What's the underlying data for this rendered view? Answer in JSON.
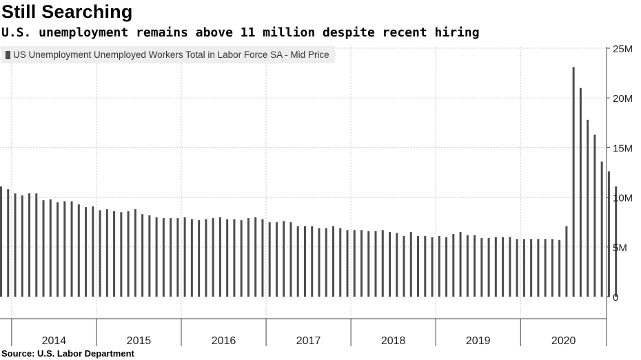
{
  "title": "Still Searching",
  "subtitle": "U.S. unemployment remains above 11 million despite recent hiring",
  "legend_label": "US Unemployment Unemployed Workers Total in Labor Force SA - Mid Price",
  "source": "Source: U.S. Labor Department",
  "colors": {
    "bar": "#4d4d4d",
    "grid": "#cccccc",
    "axis": "#444444",
    "legend_bg": "#eeeeee"
  },
  "chart_data": {
    "type": "bar",
    "title": "Still Searching",
    "subtitle": "U.S. unemployment remains above 11 million despite recent hiring",
    "series_name": "US Unemployment Unemployed Workers Total in Labor Force SA - Mid Price",
    "y_axis_side": "right",
    "ylim": [
      0,
      25
    ],
    "unit": "M",
    "y_ticks": [
      {
        "value": 0,
        "label": "0"
      },
      {
        "value": 5,
        "label": "5M"
      },
      {
        "value": 10,
        "label": "10M"
      },
      {
        "value": 15,
        "label": "15M"
      },
      {
        "value": 20,
        "label": "20M"
      },
      {
        "value": 25,
        "label": "25M"
      }
    ],
    "x_ticks": [
      "2014",
      "2015",
      "2016",
      "2017",
      "2018",
      "2019",
      "2020"
    ],
    "first_period": "2013-11",
    "grid": true,
    "legend_position": "top-left",
    "values": [
      11.1,
      10.8,
      10.4,
      10.2,
      10.4,
      10.4,
      9.7,
      9.8,
      9.5,
      9.6,
      9.6,
      9.3,
      9.0,
      9.1,
      8.7,
      8.8,
      8.6,
      8.5,
      8.6,
      8.8,
      8.3,
      8.2,
      8.0,
      7.9,
      7.9,
      7.9,
      8.0,
      7.8,
      7.7,
      7.8,
      7.9,
      8.0,
      7.8,
      7.8,
      7.7,
      7.9,
      8.0,
      7.8,
      7.5,
      7.5,
      7.6,
      7.5,
      7.1,
      7.1,
      7.1,
      6.9,
      6.9,
      7.1,
      6.9,
      6.7,
      6.7,
      6.7,
      6.6,
      6.6,
      6.7,
      6.5,
      6.4,
      6.1,
      6.5,
      6.1,
      6.1,
      6.0,
      6.1,
      6.0,
      6.3,
      6.5,
      6.2,
      6.2,
      5.9,
      5.9,
      6.0,
      6.0,
      6.0,
      5.8,
      5.8,
      5.8,
      5.8,
      5.8,
      5.8,
      5.7,
      7.1,
      23.1,
      21.0,
      17.8,
      16.3,
      13.6,
      12.6,
      11.1
    ]
  }
}
